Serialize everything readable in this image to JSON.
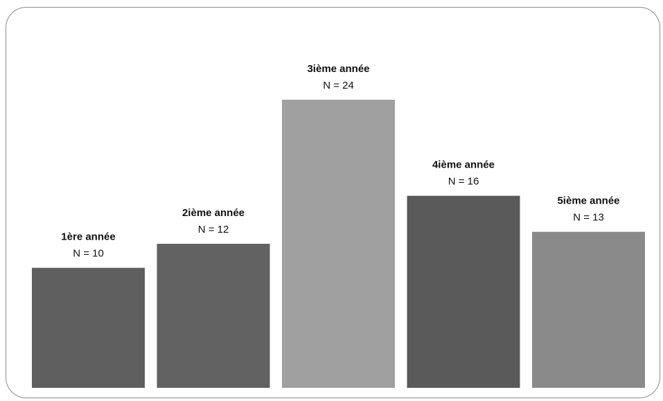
{
  "chart_data": {
    "type": "bar",
    "categories": [
      "1ère année",
      "2ième année",
      "3ième année",
      "4ième année",
      "5ième année"
    ],
    "values": [
      10,
      12,
      24,
      16,
      13
    ],
    "data_labels": [
      "N = 10",
      "N = 12",
      "N = 24",
      "N = 16",
      "N = 13"
    ],
    "colors": [
      "#5f5f5f",
      "#626262",
      "#a0a0a0",
      "#5a5a5a",
      "#8a8a8a"
    ],
    "title": "",
    "xlabel": "",
    "ylabel": "",
    "ylim": [
      0,
      24
    ],
    "grid": false,
    "legend": "none"
  }
}
